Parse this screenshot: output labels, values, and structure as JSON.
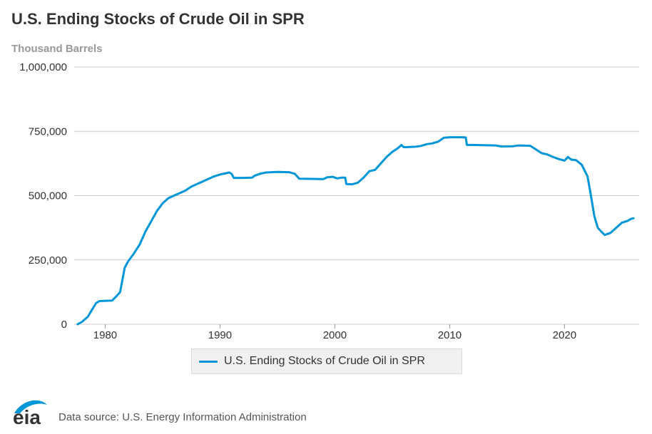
{
  "title": "U.S. Ending Stocks of Crude Oil in SPR",
  "units": "Thousand Barrels",
  "legend": {
    "label": "U.S. Ending Stocks of Crude Oil in SPR"
  },
  "footer": {
    "logo_text": "eia",
    "source": "Data source: U.S. Energy Information Administration"
  },
  "colors": {
    "series": "#0096d7",
    "grid": "#cccccc",
    "logo": "#0096d7"
  },
  "chart_data": {
    "type": "line",
    "title": "U.S. Ending Stocks of Crude Oil in SPR",
    "ylabel": "Thousand Barrels",
    "xlabel": "",
    "xlim": [
      1977.3,
      2026.5
    ],
    "ylim": [
      0,
      1000000
    ],
    "x_ticks": [
      {
        "value": 1980,
        "label": "1980"
      },
      {
        "value": 1990,
        "label": "1990"
      },
      {
        "value": 2000,
        "label": "2000"
      },
      {
        "value": 2010,
        "label": "2010"
      },
      {
        "value": 2020,
        "label": "2020"
      }
    ],
    "y_ticks": [
      {
        "value": 0,
        "label": "0"
      },
      {
        "value": 250000,
        "label": "250,000"
      },
      {
        "value": 500000,
        "label": "500,000"
      },
      {
        "value": 750000,
        "label": "750,000"
      },
      {
        "value": 1000000,
        "label": "1,000,000"
      }
    ],
    "series": [
      {
        "name": "U.S. Ending Stocks of Crude Oil in SPR",
        "points": [
          [
            1977.6,
            0
          ],
          [
            1978.0,
            10000
          ],
          [
            1978.5,
            30000
          ],
          [
            1978.9,
            60000
          ],
          [
            1979.2,
            82000
          ],
          [
            1979.5,
            90000
          ],
          [
            1980.0,
            91000
          ],
          [
            1980.6,
            92000
          ],
          [
            1981.0,
            110000
          ],
          [
            1981.3,
            125000
          ],
          [
            1981.7,
            220000
          ],
          [
            1982.0,
            245000
          ],
          [
            1982.5,
            275000
          ],
          [
            1983.0,
            310000
          ],
          [
            1983.5,
            360000
          ],
          [
            1984.0,
            400000
          ],
          [
            1984.5,
            440000
          ],
          [
            1985.0,
            470000
          ],
          [
            1985.5,
            490000
          ],
          [
            1986.0,
            500000
          ],
          [
            1986.5,
            510000
          ],
          [
            1987.0,
            520000
          ],
          [
            1987.5,
            535000
          ],
          [
            1988.0,
            545000
          ],
          [
            1988.5,
            555000
          ],
          [
            1989.0,
            565000
          ],
          [
            1989.5,
            575000
          ],
          [
            1990.0,
            582000
          ],
          [
            1990.5,
            587000
          ],
          [
            1990.8,
            590000
          ],
          [
            1991.0,
            585000
          ],
          [
            1991.2,
            569000
          ],
          [
            1992.0,
            569000
          ],
          [
            1992.8,
            570000
          ],
          [
            1993.0,
            577000
          ],
          [
            1993.5,
            585000
          ],
          [
            1994.0,
            590000
          ],
          [
            1995.0,
            592000
          ],
          [
            1996.0,
            591000
          ],
          [
            1996.5,
            585000
          ],
          [
            1996.9,
            566000
          ],
          [
            1998.0,
            565000
          ],
          [
            1999.0,
            564000
          ],
          [
            1999.3,
            571000
          ],
          [
            1999.8,
            573000
          ],
          [
            2000.2,
            567000
          ],
          [
            2000.6,
            570000
          ],
          [
            2000.9,
            570000
          ],
          [
            2001.0,
            545000
          ],
          [
            2001.5,
            544000
          ],
          [
            2002.0,
            550000
          ],
          [
            2002.5,
            570000
          ],
          [
            2003.0,
            595000
          ],
          [
            2003.5,
            600000
          ],
          [
            2004.0,
            625000
          ],
          [
            2004.5,
            650000
          ],
          [
            2005.0,
            670000
          ],
          [
            2005.5,
            685000
          ],
          [
            2005.8,
            697000
          ],
          [
            2006.0,
            688000
          ],
          [
            2006.5,
            689000
          ],
          [
            2007.0,
            690000
          ],
          [
            2007.5,
            693000
          ],
          [
            2008.0,
            700000
          ],
          [
            2008.5,
            703000
          ],
          [
            2009.0,
            710000
          ],
          [
            2009.5,
            725000
          ],
          [
            2010.0,
            727000
          ],
          [
            2011.0,
            727000
          ],
          [
            2011.4,
            726000
          ],
          [
            2011.5,
            697000
          ],
          [
            2012.0,
            697000
          ],
          [
            2013.0,
            696000
          ],
          [
            2014.0,
            695000
          ],
          [
            2014.5,
            691000
          ],
          [
            2015.5,
            692000
          ],
          [
            2016.0,
            695000
          ],
          [
            2017.0,
            694000
          ],
          [
            2017.5,
            680000
          ],
          [
            2018.0,
            665000
          ],
          [
            2018.5,
            660000
          ],
          [
            2019.0,
            650000
          ],
          [
            2019.5,
            642000
          ],
          [
            2020.0,
            636000
          ],
          [
            2020.3,
            650000
          ],
          [
            2020.6,
            640000
          ],
          [
            2021.0,
            638000
          ],
          [
            2021.5,
            620000
          ],
          [
            2022.0,
            575000
          ],
          [
            2022.3,
            500000
          ],
          [
            2022.6,
            420000
          ],
          [
            2022.9,
            375000
          ],
          [
            2023.2,
            360000
          ],
          [
            2023.5,
            347000
          ],
          [
            2024.0,
            355000
          ],
          [
            2024.5,
            375000
          ],
          [
            2025.0,
            395000
          ],
          [
            2025.5,
            402000
          ],
          [
            2025.8,
            410000
          ],
          [
            2026.0,
            412000
          ]
        ]
      }
    ]
  }
}
